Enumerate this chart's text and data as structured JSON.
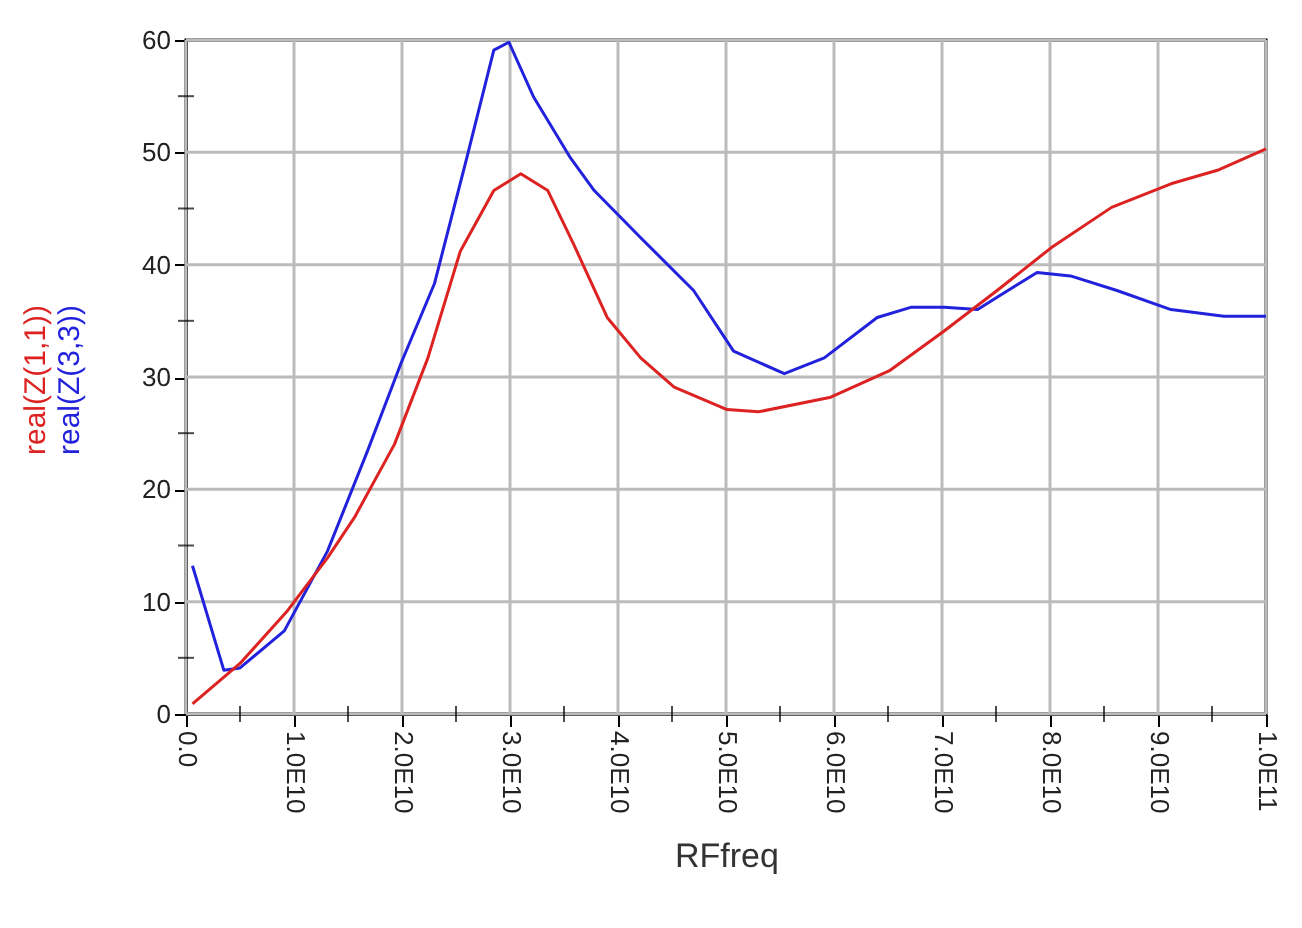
{
  "chart_data": {
    "type": "line",
    "xlabel": "RFfreq",
    "xlim": [
      0,
      100000000000
    ],
    "ylim": [
      0,
      60
    ],
    "xticks": [
      {
        "value": 0,
        "label": "0.0"
      },
      {
        "value": 5000000000,
        "label": null
      },
      {
        "value": 10000000000,
        "label": "1.0E10"
      },
      {
        "value": 15000000000,
        "label": null
      },
      {
        "value": 20000000000,
        "label": "2.0E10"
      },
      {
        "value": 25000000000,
        "label": null
      },
      {
        "value": 30000000000,
        "label": "3.0E10"
      },
      {
        "value": 35000000000,
        "label": null
      },
      {
        "value": 40000000000,
        "label": "4.0E10"
      },
      {
        "value": 45000000000,
        "label": null
      },
      {
        "value": 50000000000,
        "label": "5.0E10"
      },
      {
        "value": 55000000000,
        "label": null
      },
      {
        "value": 60000000000,
        "label": "6.0E10"
      },
      {
        "value": 65000000000,
        "label": null
      },
      {
        "value": 70000000000,
        "label": "7.0E10"
      },
      {
        "value": 75000000000,
        "label": null
      },
      {
        "value": 80000000000,
        "label": "8.0E10"
      },
      {
        "value": 85000000000,
        "label": null
      },
      {
        "value": 90000000000,
        "label": "9.0E10"
      },
      {
        "value": 95000000000,
        "label": null
      },
      {
        "value": 100000000000,
        "label": "1.0E11"
      }
    ],
    "yticks": [
      0,
      {
        "value": 5,
        "label": null
      },
      10,
      {
        "value": 15,
        "label": null
      },
      20,
      {
        "value": 25,
        "label": null
      },
      30,
      {
        "value": 35,
        "label": null
      },
      40,
      {
        "value": 45,
        "label": null
      },
      50,
      {
        "value": 55,
        "label": null
      },
      60
    ],
    "grid": true,
    "line_style": "solid",
    "series": [
      {
        "name": "real(Z(3,3))",
        "color": "#2222dd",
        "x": [
          600000000,
          3500000000,
          5000000000,
          9100000000,
          13100000000,
          16800000000,
          19900000000,
          23000000000,
          26000000000,
          28500000000,
          29900000000,
          32200000000,
          35600000000,
          37800000000,
          42100000000,
          47000000000,
          50700000000,
          55400000000,
          59100000000,
          64000000000,
          67100000000,
          70200000000,
          73300000000,
          75100000000,
          78800000000,
          81900000000,
          86200000000,
          91200000000,
          96100000000,
          100000000000
        ],
        "values": [
          13.2,
          3.9,
          4.1,
          7.4,
          14.5,
          23.4,
          31.2,
          38.3,
          49.5,
          59.1,
          59.8,
          54.9,
          49.5,
          46.6,
          42.4,
          37.7,
          32.3,
          30.3,
          31.7,
          35.3,
          36.2,
          36.2,
          36.0,
          37.1,
          39.3,
          39.0,
          37.7,
          36.0,
          35.4,
          35.4
        ]
      },
      {
        "name": "real(Z(1,1))",
        "color": "#dd2222",
        "x": [
          600000000,
          5000000000,
          9400000000,
          13100000000,
          15600000000,
          19300000000,
          22400000000,
          25400000000,
          28500000000,
          31000000000,
          33500000000,
          35900000000,
          39000000000,
          42100000000,
          45200000000,
          50100000000,
          53000000000,
          59700000000,
          65200000000,
          70200000000,
          75100000000,
          80100000000,
          85700000000,
          91200000000,
          95500000000,
          100000000000
        ],
        "values": [
          0.9,
          4.5,
          9.2,
          13.9,
          17.5,
          24.0,
          31.7,
          41.2,
          46.6,
          48.1,
          46.6,
          41.8,
          35.3,
          31.7,
          29.1,
          27.1,
          26.9,
          28.2,
          30.6,
          34.1,
          37.7,
          41.5,
          45.1,
          47.2,
          48.4,
          50.3
        ]
      }
    ]
  }
}
